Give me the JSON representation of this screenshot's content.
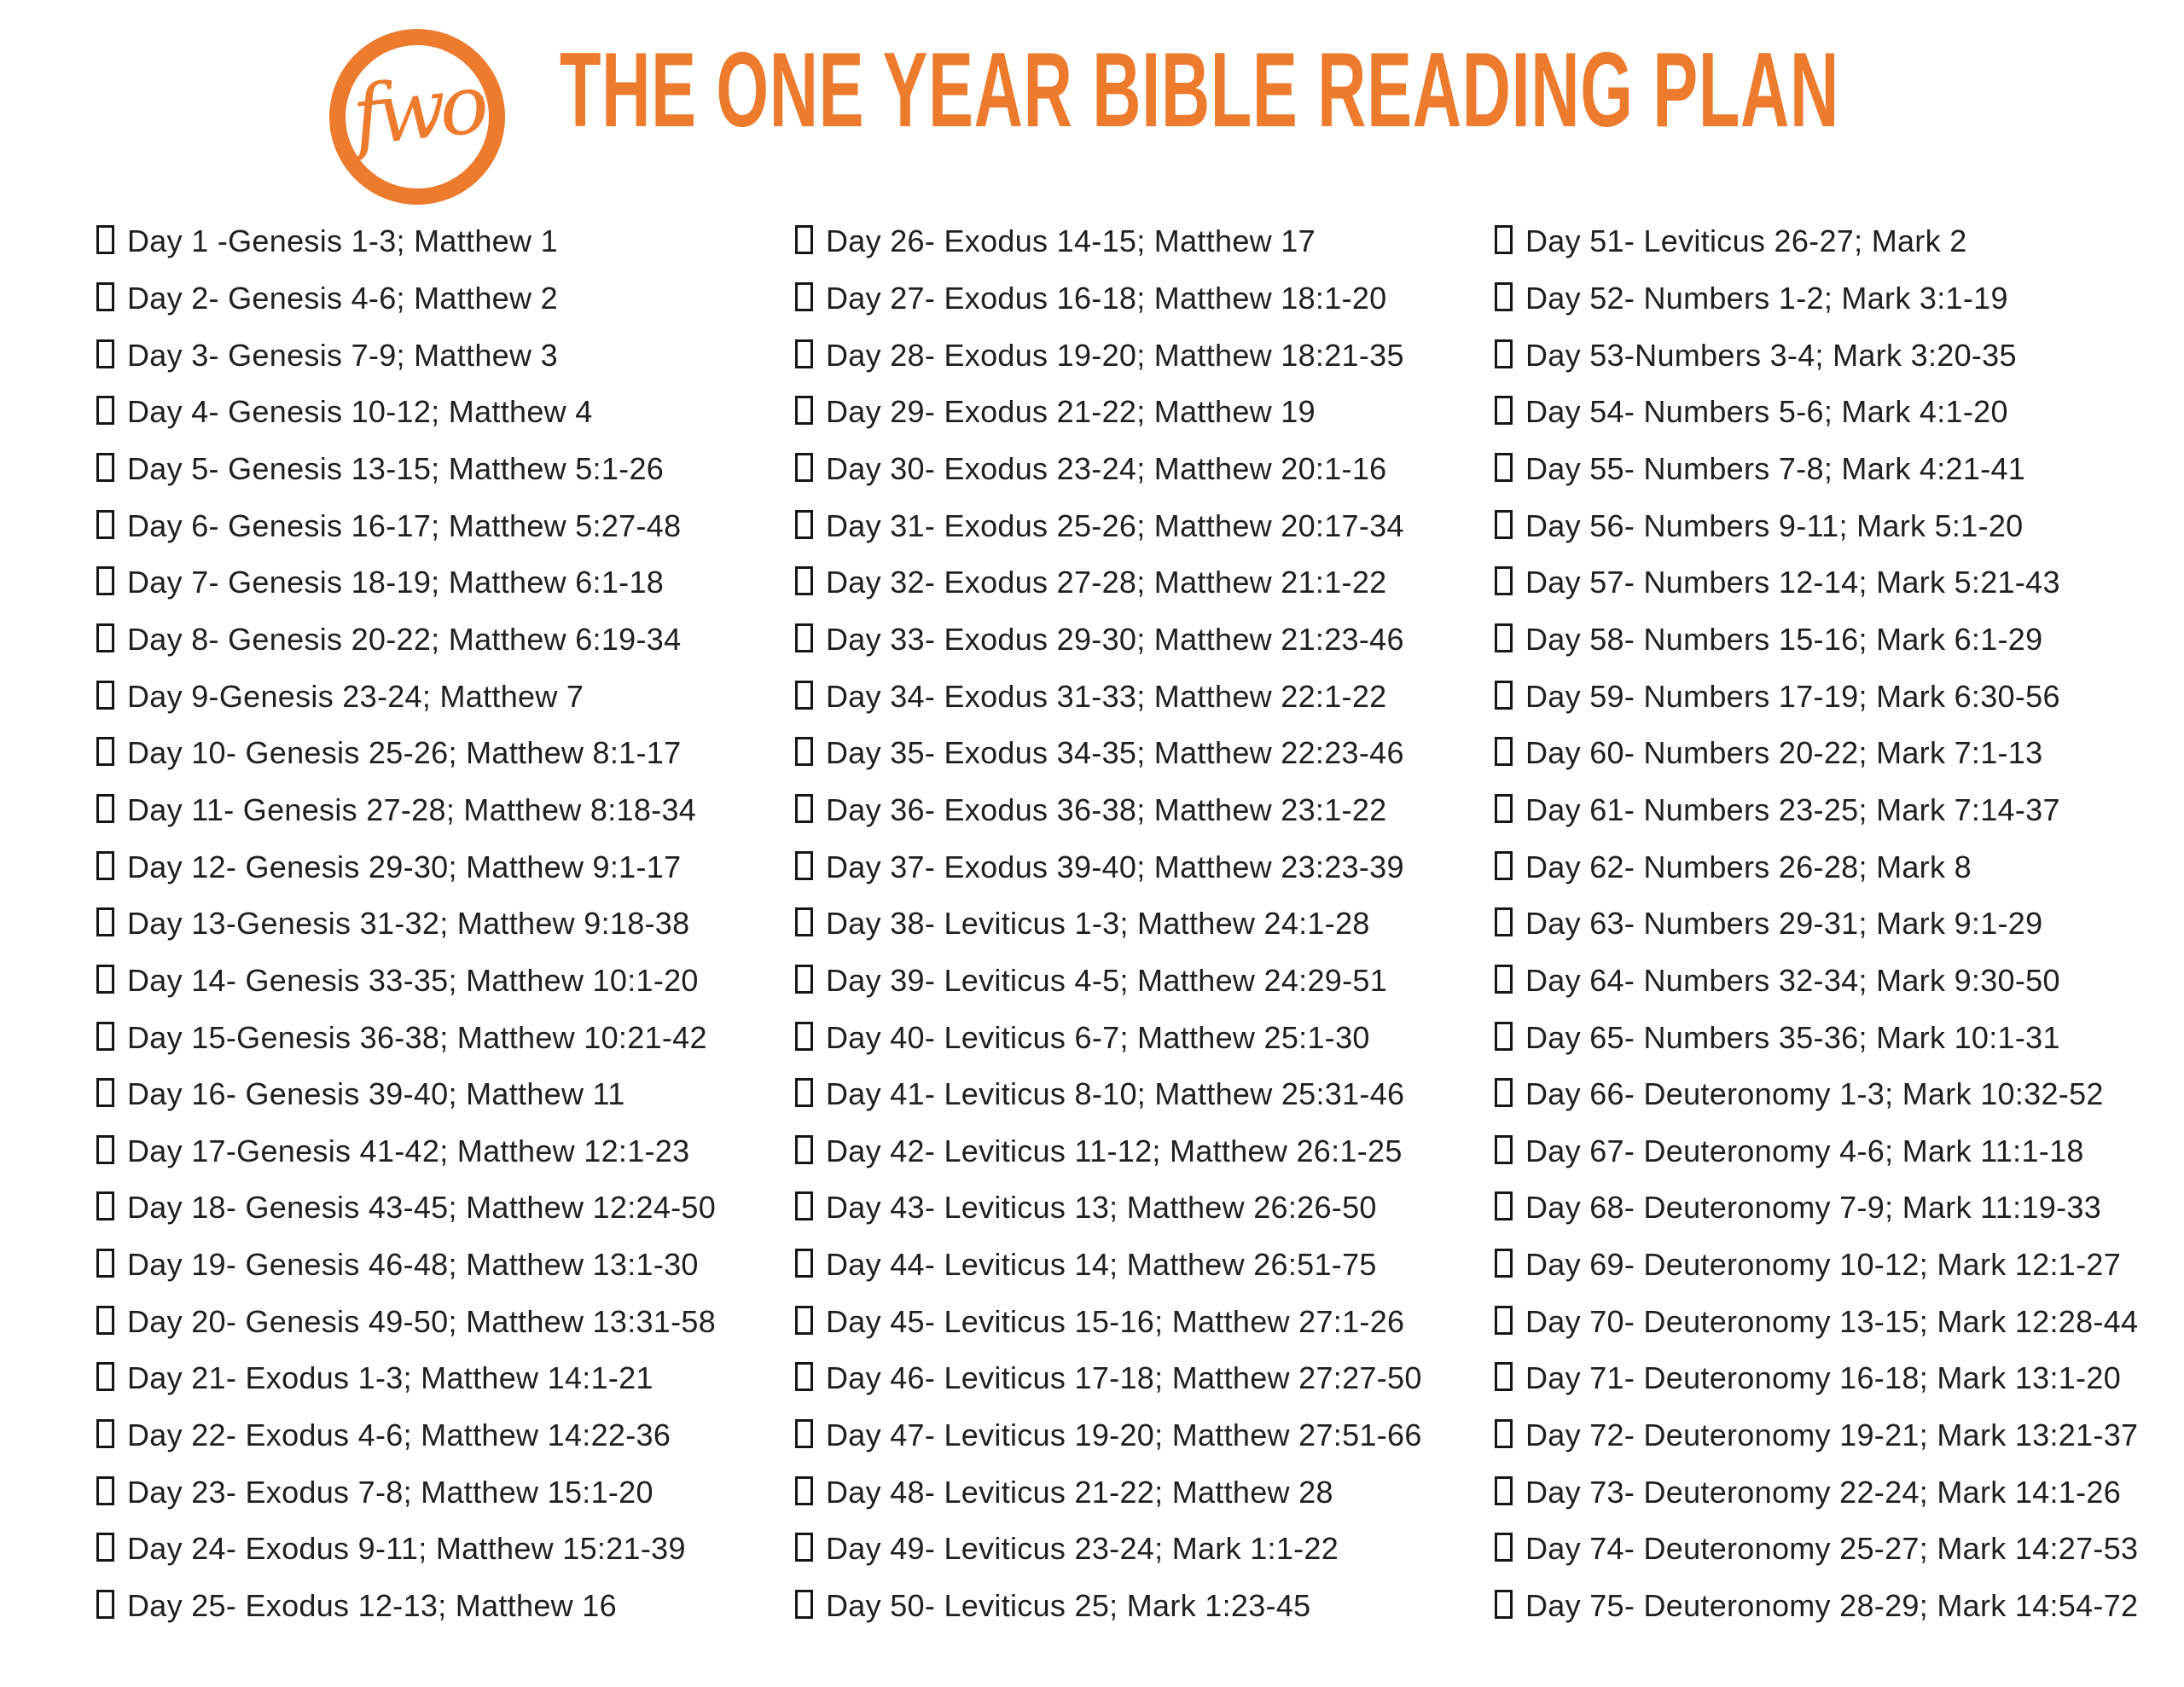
{
  "header": {
    "logo_text": "fwo",
    "title": "THE ONE YEAR BIBLE READING PLAN",
    "accent_color": "#ED7B2E"
  },
  "plan": {
    "columns": [
      {
        "items": [
          "Day 1 -Genesis 1-3; Matthew 1",
          "Day 2- Genesis 4-6; Matthew 2",
          "Day 3- Genesis 7-9; Matthew 3",
          "Day 4- Genesis 10-12; Matthew 4",
          "Day 5- Genesis 13-15; Matthew 5:1-26",
          "Day 6- Genesis 16-17; Matthew 5:27-48",
          "Day 7- Genesis 18-19; Matthew 6:1-18",
          "Day 8- Genesis 20-22; Matthew 6:19-34",
          "Day 9-Genesis 23-24; Matthew 7",
          "Day 10- Genesis 25-26; Matthew 8:1-17",
          "Day 11- Genesis 27-28; Matthew 8:18-34",
          "Day 12- Genesis 29-30; Matthew 9:1-17",
          "Day 13-Genesis 31-32; Matthew 9:18-38",
          "Day 14- Genesis 33-35; Matthew 10:1-20",
          "Day 15-Genesis 36-38; Matthew 10:21-42",
          "Day 16- Genesis 39-40; Matthew 11",
          "Day 17-Genesis 41-42; Matthew 12:1-23",
          "Day 18- Genesis 43-45; Matthew 12:24-50",
          "Day 19- Genesis 46-48; Matthew 13:1-30",
          "Day 20- Genesis 49-50; Matthew 13:31-58",
          "Day 21- Exodus 1-3; Matthew 14:1-21",
          "Day 22- Exodus 4-6; Matthew 14:22-36",
          "Day 23- Exodus 7-8; Matthew 15:1-20",
          "Day 24- Exodus 9-11; Matthew 15:21-39",
          "Day 25- Exodus 12-13; Matthew 16"
        ]
      },
      {
        "items": [
          "Day 26- Exodus 14-15; Matthew 17",
          "Day 27- Exodus 16-18; Matthew 18:1-20",
          "Day 28- Exodus 19-20; Matthew 18:21-35",
          "Day 29- Exodus 21-22; Matthew 19",
          "Day 30- Exodus 23-24; Matthew 20:1-16",
          "Day 31- Exodus 25-26; Matthew 20:17-34",
          "Day 32- Exodus 27-28; Matthew 21:1-22",
          "Day 33- Exodus 29-30; Matthew 21:23-46",
          "Day 34- Exodus 31-33; Matthew 22:1-22",
          "Day 35- Exodus 34-35; Matthew 22:23-46",
          "Day 36- Exodus 36-38; Matthew 23:1-22",
          "Day 37- Exodus 39-40; Matthew 23:23-39",
          "Day 38- Leviticus 1-3; Matthew 24:1-28",
          "Day 39- Leviticus 4-5; Matthew 24:29-51",
          "Day 40- Leviticus 6-7; Matthew 25:1-30",
          "Day 41- Leviticus 8-10; Matthew 25:31-46",
          "Day 42- Leviticus 11-12; Matthew 26:1-25",
          "Day 43- Leviticus 13; Matthew 26:26-50",
          "Day 44- Leviticus 14; Matthew 26:51-75",
          "Day 45- Leviticus 15-16; Matthew 27:1-26",
          "Day 46- Leviticus 17-18; Matthew 27:27-50",
          "Day 47- Leviticus 19-20; Matthew 27:51-66",
          "Day 48- Leviticus 21-22; Matthew 28",
          "Day 49- Leviticus 23-24; Mark 1:1-22",
          "Day 50- Leviticus 25; Mark 1:23-45"
        ]
      },
      {
        "items": [
          "Day 51- Leviticus 26-27; Mark 2",
          "Day 52- Numbers 1-2; Mark 3:1-19",
          "Day 53-Numbers 3-4; Mark 3:20-35",
          "Day 54- Numbers 5-6; Mark 4:1-20",
          "Day 55- Numbers 7-8; Mark 4:21-41",
          "Day 56- Numbers 9-11; Mark 5:1-20",
          "Day 57- Numbers 12-14; Mark 5:21-43",
          "Day 58- Numbers 15-16; Mark 6:1-29",
          "Day 59- Numbers 17-19; Mark 6:30-56",
          "Day 60- Numbers 20-22; Mark 7:1-13",
          "Day 61- Numbers 23-25; Mark 7:14-37",
          "Day 62- Numbers 26-28; Mark 8",
          "Day 63- Numbers 29-31; Mark 9:1-29",
          "Day 64- Numbers 32-34; Mark 9:30-50",
          "Day 65- Numbers 35-36; Mark 10:1-31",
          "Day 66- Deuteronomy 1-3; Mark 10:32-52",
          "Day 67- Deuteronomy 4-6; Mark 11:1-18",
          "Day 68- Deuteronomy 7-9; Mark 11:19-33",
          "Day 69- Deuteronomy 10-12; Mark 12:1-27",
          "Day 70- Deuteronomy 13-15; Mark 12:28-44",
          "Day 71- Deuteronomy 16-18; Mark 13:1-20",
          "Day 72- Deuteronomy 19-21; Mark 13:21-37",
          "Day 73- Deuteronomy 22-24; Mark 14:1-26",
          "Day 74- Deuteronomy 25-27; Mark 14:27-53",
          "Day 75- Deuteronomy 28-29; Mark 14:54-72"
        ]
      }
    ]
  }
}
